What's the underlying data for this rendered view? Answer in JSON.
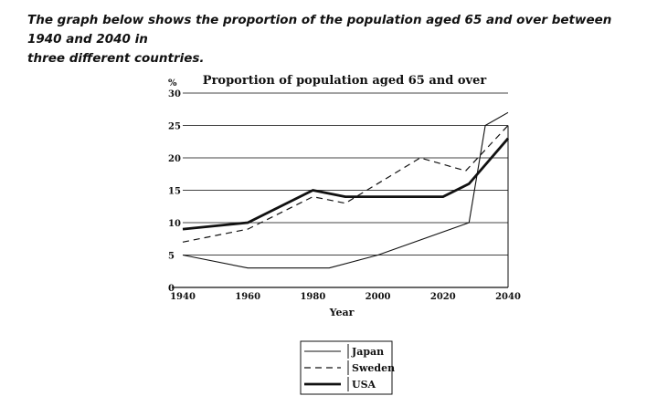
{
  "prompt": {
    "line1": "The graph below shows the proportion of the population aged 65 and over between 1940 and 2040 in",
    "line2": "three different countries."
  },
  "chart_data": {
    "type": "line",
    "title": "Proportion of population aged 65 and over",
    "xlabel": "Year",
    "ylabel": "%",
    "xlim": [
      1940,
      2040
    ],
    "ylim": [
      0,
      30
    ],
    "xticks": [
      1940,
      1960,
      1980,
      2000,
      2020,
      2040
    ],
    "yticks": [
      0,
      5,
      10,
      15,
      20,
      25,
      30
    ],
    "grid": "horizontal",
    "legend_position": "bottom-center",
    "series": [
      {
        "name": "Japan",
        "style": "solid-thin",
        "x": [
          1940,
          1960,
          1985,
          2000,
          2028,
          2033,
          2040
        ],
        "y": [
          5,
          3,
          3,
          5,
          10,
          25,
          27
        ]
      },
      {
        "name": "Sweden",
        "style": "dashed",
        "x": [
          1940,
          1960,
          1980,
          1990,
          2013,
          2027,
          2040
        ],
        "y": [
          7,
          9,
          14,
          13,
          20,
          18,
          25
        ]
      },
      {
        "name": "USA",
        "style": "solid-thick",
        "x": [
          1940,
          1960,
          1980,
          1990,
          2020,
          2028,
          2040
        ],
        "y": [
          9,
          10,
          15,
          14,
          14,
          16,
          23
        ]
      }
    ]
  },
  "colors": {
    "ink": "#111111",
    "grid": "#444444",
    "background": "#ffffff"
  }
}
